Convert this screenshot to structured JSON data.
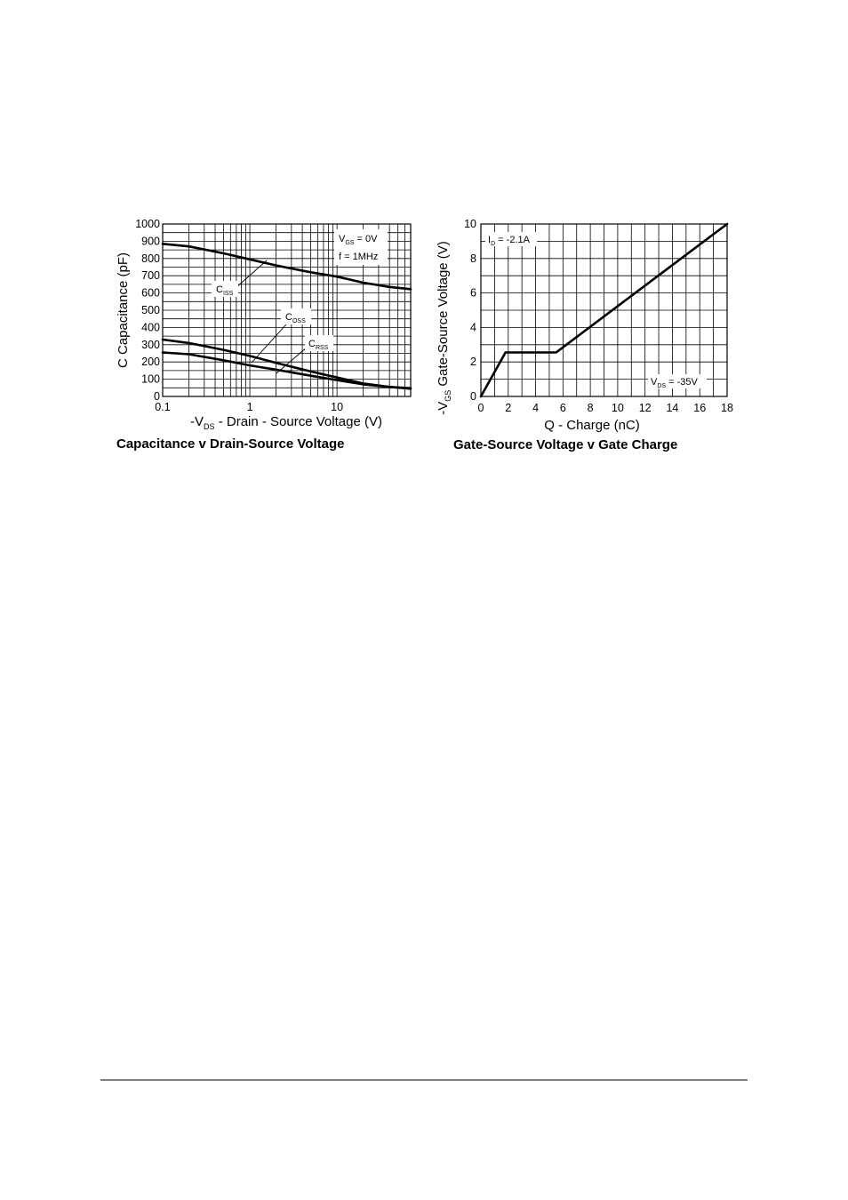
{
  "colors": {
    "ink": "#000000",
    "background": "#ffffff"
  },
  "chart_data": [
    {
      "type": "line",
      "title": "Capacitance v Drain-Source Voltage",
      "ylabel": "C  Capacitance (pF)",
      "xlabel": {
        "prefix": "-V",
        "subscript": "DS",
        "rest": " - Drain - Source Voltage (V)"
      },
      "x_scale": "log",
      "xlim": [
        0.1,
        70
      ],
      "ylim": [
        0,
        1000
      ],
      "x_ticks": [
        {
          "value": 0.1,
          "label": "0.1"
        },
        {
          "value": 1,
          "label": "1"
        },
        {
          "value": 10,
          "label": "10"
        }
      ],
      "y_ticks": [
        {
          "value": 0,
          "label": "0"
        },
        {
          "value": 100,
          "label": "100"
        },
        {
          "value": 200,
          "label": "200"
        },
        {
          "value": 300,
          "label": "300"
        },
        {
          "value": 400,
          "label": "400"
        },
        {
          "value": 500,
          "label": "500"
        },
        {
          "value": 600,
          "label": "600"
        },
        {
          "value": 700,
          "label": "700"
        },
        {
          "value": 800,
          "label": "800"
        },
        {
          "value": 900,
          "label": "900"
        },
        {
          "value": 1000,
          "label": "1000"
        }
      ],
      "grid": true,
      "annotation": {
        "line1": {
          "main": "V",
          "sub": "GS",
          "rest": " = 0V"
        },
        "line2": "f = 1MHz"
      },
      "series": [
        {
          "name": "C",
          "sub": "ISS",
          "points": [
            [
              0.1,
              885
            ],
            [
              0.2,
              870
            ],
            [
              0.5,
              830
            ],
            [
              1,
              795
            ],
            [
              2,
              760
            ],
            [
              5,
              720
            ],
            [
              10,
              695
            ],
            [
              20,
              660
            ],
            [
              40,
              635
            ],
            [
              70,
              622
            ]
          ]
        },
        {
          "name": "C",
          "sub": "OSS",
          "points": [
            [
              0.1,
              330
            ],
            [
              0.2,
              310
            ],
            [
              0.5,
              270
            ],
            [
              1,
              235
            ],
            [
              2,
              195
            ],
            [
              5,
              145
            ],
            [
              10,
              110
            ],
            [
              20,
              75
            ],
            [
              40,
              55
            ],
            [
              70,
              45
            ]
          ]
        },
        {
          "name": "C",
          "sub": "RSS",
          "points": [
            [
              0.1,
              255
            ],
            [
              0.2,
              245
            ],
            [
              0.5,
              210
            ],
            [
              1,
              180
            ],
            [
              2,
              155
            ],
            [
              5,
              120
            ],
            [
              10,
              95
            ],
            [
              20,
              70
            ],
            [
              40,
              55
            ],
            [
              70,
              48
            ]
          ]
        }
      ]
    },
    {
      "type": "line",
      "title": "Gate-Source Voltage v Gate Charge",
      "ylabel": {
        "prefix": "-V",
        "subscript": "GS",
        "rest": " Gate-Source Voltage (V)"
      },
      "xlabel": "Q - Charge (nC)",
      "xlim": [
        0,
        18
      ],
      "ylim": [
        0,
        10
      ],
      "x_ticks": [
        {
          "value": 0,
          "label": "0"
        },
        {
          "value": 2,
          "label": "2"
        },
        {
          "value": 4,
          "label": "4"
        },
        {
          "value": 6,
          "label": "6"
        },
        {
          "value": 8,
          "label": "8"
        },
        {
          "value": 10,
          "label": "10"
        },
        {
          "value": 12,
          "label": "12"
        },
        {
          "value": 14,
          "label": "14"
        },
        {
          "value": 16,
          "label": "16"
        },
        {
          "value": 18,
          "label": "18"
        }
      ],
      "y_ticks": [
        {
          "value": 0,
          "label": "0"
        },
        {
          "value": 2,
          "label": "2"
        },
        {
          "value": 4,
          "label": "4"
        },
        {
          "value": 6,
          "label": "6"
        },
        {
          "value": 8,
          "label": "8"
        },
        {
          "value": 10,
          "label": "10"
        }
      ],
      "grid": true,
      "annotations": [
        {
          "main": "I",
          "sub": "D",
          "rest": " = -2.1A"
        },
        {
          "main": "V",
          "sub": "DS",
          "rest": " = -35V"
        }
      ],
      "series": [
        {
          "points": [
            [
              0,
              0
            ],
            [
              1.8,
              2.55
            ],
            [
              5.5,
              2.55
            ],
            [
              18,
              10
            ]
          ]
        }
      ]
    }
  ]
}
